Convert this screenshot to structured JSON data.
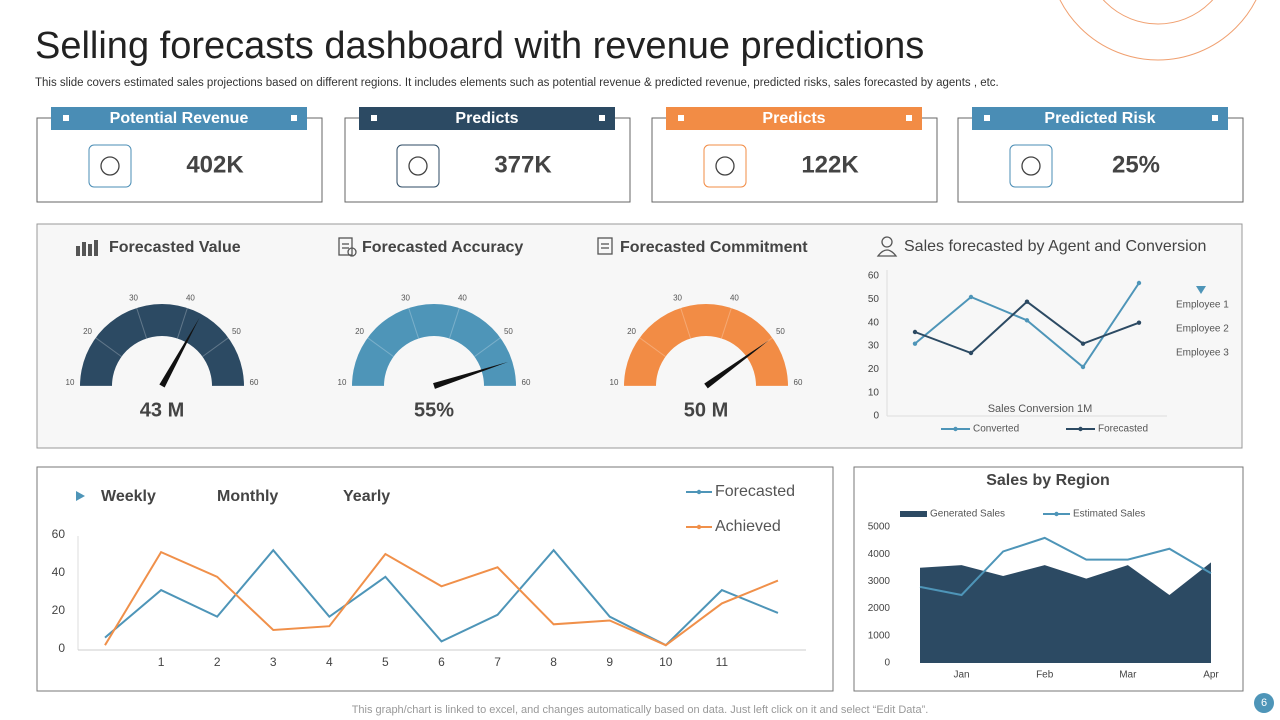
{
  "title": "Selling forecasts dashboard with revenue predictions",
  "subtitle": "This slide covers estimated sales projections based on different regions. It includes elements such as potential revenue & predicted revenue, predicted risks, sales forecasted by agents , etc.",
  "kpis": [
    {
      "label": "Potential Revenue",
      "value": "402K",
      "color": "#4a8db5"
    },
    {
      "label": "Predicts",
      "value": "377K",
      "color": "#2c4a63"
    },
    {
      "label": "Predicts",
      "value": "122K",
      "color": "#f28c45"
    },
    {
      "label": "Predicted Risk",
      "value": "25%",
      "color": "#4a8db5"
    }
  ],
  "chart_data": [
    {
      "type": "gauge",
      "title": "Forecasted Value",
      "values": [
        43
      ],
      "value_labels": [
        "43 M"
      ],
      "color": "#2c4a63",
      "ylim": [
        10,
        60
      ],
      "yticks": [
        10,
        20,
        30,
        40,
        50,
        60
      ]
    },
    {
      "type": "gauge",
      "title": "Forecasted Accuracy",
      "values": [
        55
      ],
      "value_labels": [
        "55%"
      ],
      "color": "#4e95b8",
      "ylim": [
        10,
        60
      ],
      "yticks": [
        10,
        20,
        30,
        40,
        50,
        60
      ]
    },
    {
      "type": "gauge",
      "title": "Forecasted Commitment",
      "values": [
        50
      ],
      "value_labels": [
        "50 M"
      ],
      "color": "#f28c45",
      "ylim": [
        10,
        60
      ],
      "yticks": [
        10,
        20,
        30,
        40,
        50,
        60
      ]
    },
    {
      "type": "line",
      "title": "Sales forecasted by Agent and Conversion",
      "annotations": [
        "Sales Conversion 1M",
        "Employee 1",
        "Employee 2",
        "Employee 3"
      ],
      "categories": [
        null,
        null,
        null,
        null,
        null
      ],
      "series": [
        {
          "name": "Converted",
          "color": "#4e95b8",
          "style": "line",
          "values": [
            31,
            51,
            41,
            21,
            57
          ]
        },
        {
          "name": "Forecasted",
          "color": "#2c4a63",
          "style": "line",
          "values": [
            36,
            27,
            49,
            31,
            40
          ]
        }
      ],
      "ylim": [
        0,
        60
      ],
      "yticks": [
        0,
        10,
        20,
        30,
        40,
        50,
        60
      ],
      "markers": true,
      "legend": "bottom"
    },
    {
      "type": "line",
      "tabs": [
        "Weekly",
        "Monthly",
        "Yearly"
      ],
      "categories": [
        null,
        1,
        2,
        3,
        4,
        5,
        6,
        7,
        8,
        9,
        10,
        11,
        null
      ],
      "series": [
        {
          "name": "Forecasted",
          "color": "#4e95b8",
          "style": "line",
          "values": [
            6,
            31,
            17,
            52,
            17,
            38,
            4,
            18,
            52,
            17,
            2,
            31,
            19
          ]
        },
        {
          "name": "Achieved",
          "color": "#f0904a",
          "style": "line",
          "values": [
            2,
            51,
            38,
            10,
            12,
            50,
            33,
            43,
            13,
            15,
            2,
            24,
            36
          ]
        }
      ],
      "ylim": [
        0,
        60
      ],
      "yticks": [
        0,
        20,
        40,
        60
      ],
      "markers": false,
      "legend": "top-right"
    },
    {
      "type": "line",
      "title": "Sales by Region",
      "categories": [
        null,
        "Jan",
        null,
        "Feb",
        null,
        "Mar",
        null,
        "Apr"
      ],
      "series": [
        {
          "name": "Generated Sales",
          "color": "#2c4a63",
          "style": "area",
          "values": [
            3500,
            3600,
            3200,
            3600,
            3100,
            3600,
            2500,
            3700
          ]
        },
        {
          "name": "Estimated Sales",
          "color": "#4e95b8",
          "style": "line",
          "values": [
            2800,
            2500,
            4100,
            4600,
            3800,
            3800,
            4200,
            3300
          ]
        }
      ],
      "ylim": [
        0,
        5000
      ],
      "yticks": [
        0,
        1000,
        2000,
        3000,
        4000,
        5000
      ],
      "markers": false,
      "legend": "top"
    }
  ],
  "footer": "This graph/chart is linked to excel, and changes automatically based on data. Just left click on it and select “Edit Data”.",
  "page_number": "6"
}
